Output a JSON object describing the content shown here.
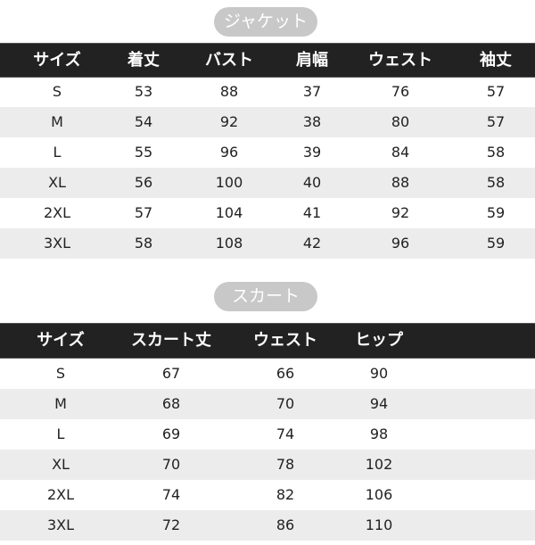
{
  "jacket": {
    "title": "ジャケット",
    "headers": [
      "サイズ",
      "着丈",
      "バスト",
      "肩幅",
      "ウェスト",
      "袖丈"
    ],
    "rows": [
      [
        "S",
        "53",
        "88",
        "37",
        "76",
        "57"
      ],
      [
        "M",
        "54",
        "92",
        "38",
        "80",
        "57"
      ],
      [
        "L",
        "55",
        "96",
        "39",
        "84",
        "58"
      ],
      [
        "XL",
        "56",
        "100",
        "40",
        "88",
        "58"
      ],
      [
        "2XL",
        "57",
        "104",
        "41",
        "92",
        "59"
      ],
      [
        "3XL",
        "58",
        "108",
        "42",
        "96",
        "59"
      ]
    ]
  },
  "skirt": {
    "title": "スカート",
    "headers": [
      "サイズ",
      "スカート丈",
      "ウェスト",
      "ヒップ"
    ],
    "rows": [
      [
        "S",
        "67",
        "66",
        "90"
      ],
      [
        "M",
        "68",
        "70",
        "94"
      ],
      [
        "L",
        "69",
        "74",
        "98"
      ],
      [
        "XL",
        "70",
        "78",
        "102"
      ],
      [
        "2XL",
        "74",
        "82",
        "106"
      ],
      [
        "3XL",
        "72",
        "86",
        "110"
      ]
    ]
  },
  "colors": {
    "header_bg": "#222222",
    "pill_bg": "#c8c8c8",
    "alt_row": "#ececec"
  }
}
